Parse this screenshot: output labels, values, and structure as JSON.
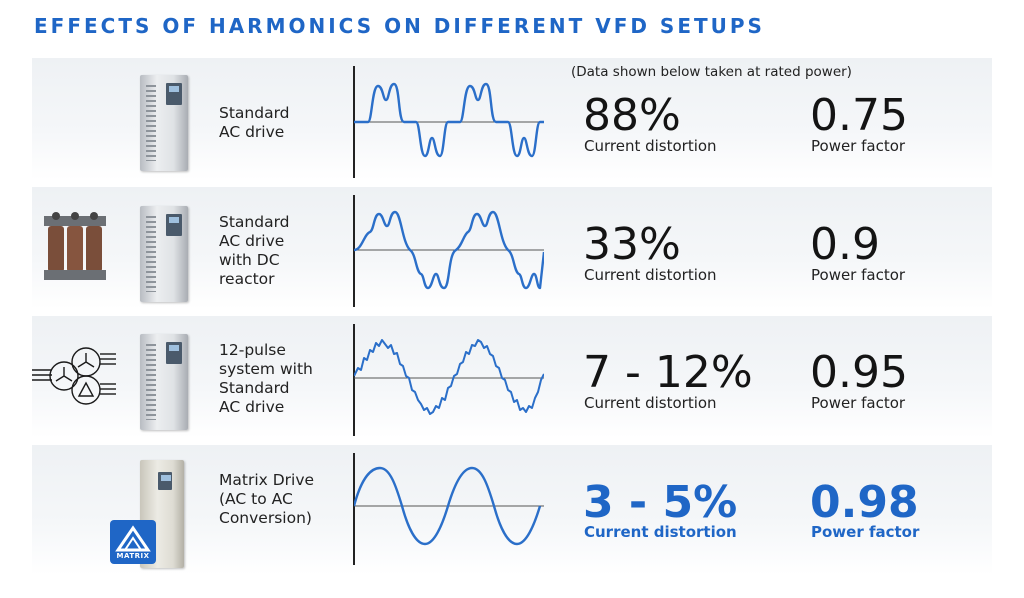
{
  "title": "EFFECTS OF HARMONICS ON DIFFERENT VFD SETUPS",
  "note": "(Data shown below taken at rated power)",
  "rows": [
    {
      "label_lines": [
        "Standard",
        "AC drive"
      ],
      "distortion": "88%",
      "distortion_caption": "Current distortion",
      "power_factor": "0.75",
      "power_factor_caption": "Power factor"
    },
    {
      "label_lines": [
        "Standard",
        "AC drive",
        "with DC",
        "reactor"
      ],
      "distortion": "33%",
      "distortion_caption": "Current distortion",
      "power_factor": "0.9",
      "power_factor_caption": "Power factor"
    },
    {
      "label_lines": [
        "12-pulse",
        "system with",
        "Standard",
        "AC drive"
      ],
      "distortion": "7 - 12%",
      "distortion_caption": "Current distortion",
      "power_factor": "0.95",
      "power_factor_caption": "Power factor"
    },
    {
      "label_lines": [
        "Matrix Drive",
        "(AC to AC",
        "Conversion)"
      ],
      "distortion": "3 - 5%",
      "distortion_caption": "Current distortion",
      "power_factor": "0.98",
      "power_factor_caption": "Power factor"
    }
  ],
  "badge_text": "MATRIX",
  "colors": {
    "accent": "#1f66c6",
    "wave": "#2b6fc9"
  }
}
